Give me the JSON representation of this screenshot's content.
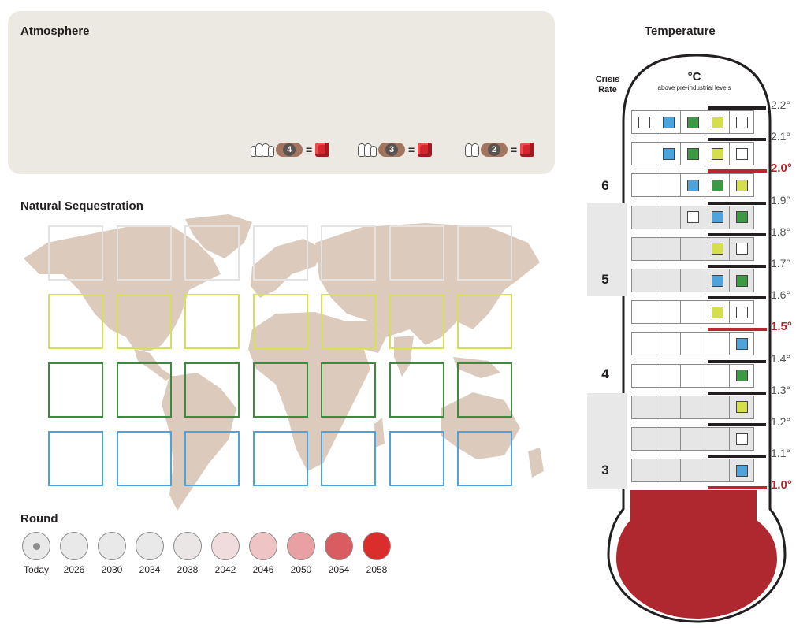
{
  "atmosphere": {
    "title": "Atmosphere",
    "rules": [
      {
        "players": "4",
        "eq": "="
      },
      {
        "players": "3",
        "eq": "="
      },
      {
        "players": "2",
        "eq": "="
      }
    ]
  },
  "sequestration": {
    "title": "Natural Sequestration",
    "columns": 7,
    "rows": [
      {
        "color_name": "white",
        "color": "#e3e3e3"
      },
      {
        "color_name": "yellow",
        "color": "#d5df5b"
      },
      {
        "color_name": "green",
        "color": "#3c8c40"
      },
      {
        "color_name": "blue",
        "color": "#4ea3dc"
      }
    ]
  },
  "round": {
    "title": "Round",
    "items": [
      {
        "label": "Today",
        "fill": "#e9e9e9"
      },
      {
        "label": "2026",
        "fill": "#e9e9e9"
      },
      {
        "label": "2030",
        "fill": "#e9e9e9"
      },
      {
        "label": "2034",
        "fill": "#e9e9e9"
      },
      {
        "label": "2038",
        "fill": "#ebe6e6"
      },
      {
        "label": "2042",
        "fill": "#f0dcdc"
      },
      {
        "label": "2046",
        "fill": "#efc4c5"
      },
      {
        "label": "2050",
        "fill": "#e8a0a2"
      },
      {
        "label": "2054",
        "fill": "#d95c60"
      },
      {
        "label": "2058",
        "fill": "#db2d2b"
      }
    ]
  },
  "temperature": {
    "title": "Temperature",
    "crisis_label_line1": "Crisis",
    "crisis_label_line2": "Rate",
    "unit": "°C",
    "unit_sub": "above pre-industrial levels",
    "crisis_numbers": [
      "6",
      "5",
      "4",
      "3"
    ],
    "labels": [
      "2.2°",
      "2.1°",
      "2.0°",
      "1.9°",
      "1.8°",
      "1.7°",
      "1.6°",
      "1.5°",
      "1.4°",
      "1.3°",
      "1.2°",
      "1.1°",
      "1.0°"
    ],
    "red_labels": [
      "2.0°",
      "1.5°",
      "1.0°"
    ],
    "cube_colors": {
      "w": "#ffffff",
      "b": "#4ea3dc",
      "g": "#3c9a45",
      "y": "#d5df4b"
    },
    "rows": [
      [
        "w",
        "b",
        "g",
        "y",
        "w"
      ],
      [
        "",
        "b",
        "g",
        "y",
        "w"
      ],
      [
        "",
        "",
        "b",
        "g",
        "y"
      ],
      [
        "",
        "",
        "w",
        "b",
        "g"
      ],
      [
        "",
        "",
        "",
        "y",
        "w"
      ],
      [
        "",
        "",
        "",
        "b",
        "g"
      ],
      [
        "",
        "",
        "",
        "y",
        "w"
      ],
      [
        "",
        "",
        "",
        "",
        "b"
      ],
      [
        "",
        "",
        "",
        "",
        "g"
      ],
      [
        "",
        "",
        "",
        "",
        "y"
      ],
      [
        "",
        "",
        "",
        "",
        "w"
      ],
      [
        "",
        "",
        "",
        "",
        "b"
      ]
    ],
    "grey_rows": [
      3,
      4,
      5,
      9,
      10,
      11
    ],
    "mercury_color": "#b0282f"
  }
}
